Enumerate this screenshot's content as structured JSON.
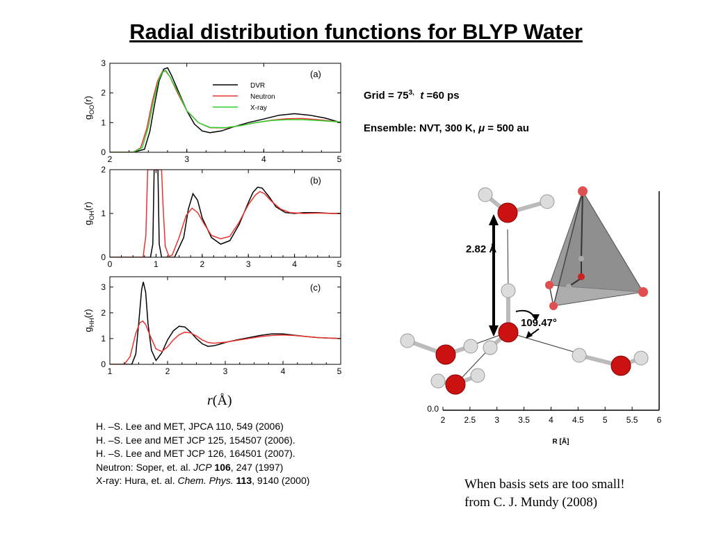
{
  "title": "Radial distribution functions for BLYP Water",
  "info": {
    "grid_prefix": "Grid = 75",
    "grid_exp": "3,",
    "t_symbol": "t",
    "t_value": " =60 ps",
    "ensemble_prefix": "Ensemble:  NVT, 300 K, ",
    "mu_symbol": "μ",
    "mu_value": " = 500 au"
  },
  "rlabel_r": "r",
  "rlabel_unit": "(Å)",
  "references": {
    "r1": "H. –S. Lee and MET, JPCA 110, 549 (2006)",
    "r2": "H. –S. Lee and MET JCP 125, 154507 (2006).",
    "r3": "H. –S. Lee and MET JCP 126, 164501 (2007).",
    "r4_a": "Neutron:  Soper, et. al. ",
    "r4_b": "JCP",
    "r4_c": " 106",
    "r4_d": ", 247 (1997)",
    "r5_a": "X-ray: Hura, et. al. ",
    "r5_b": "Chem. Phys.",
    "r5_c": " 113",
    "r5_d": ", 9140 (2000)"
  },
  "caption": {
    "line1": "When basis sets are too small!",
    "line2": "from C. J. Mundy (2008)"
  },
  "molecule": {
    "distance_label": "2.82 Å",
    "angle_label": "109.47°"
  },
  "colors": {
    "dvr": "#000000",
    "neutron": "#e8322d",
    "xray": "#30d030",
    "oxygen": "#cc1111",
    "hydrogen": "#dddddd"
  },
  "chart_data": [
    {
      "type": "line",
      "panel_label": "(a)",
      "ylabel": "gOO(r)",
      "xlim": [
        2,
        5
      ],
      "ylim": [
        0,
        3
      ],
      "xticks": [
        2,
        3,
        4,
        5
      ],
      "yticks": [
        0,
        1,
        2,
        3
      ],
      "legend": [
        "DVR",
        "Neutron",
        "X-ray"
      ],
      "series": [
        {
          "name": "DVR",
          "color": "#000000",
          "x": [
            2.0,
            2.3,
            2.45,
            2.52,
            2.58,
            2.64,
            2.7,
            2.75,
            2.8,
            2.9,
            3.0,
            3.1,
            3.2,
            3.3,
            3.45,
            3.6,
            3.8,
            4.0,
            4.2,
            4.4,
            4.6,
            4.8,
            5.0
          ],
          "y": [
            0,
            0,
            0.1,
            0.7,
            1.6,
            2.4,
            2.8,
            2.85,
            2.6,
            2.0,
            1.4,
            0.95,
            0.72,
            0.66,
            0.72,
            0.85,
            1.0,
            1.12,
            1.25,
            1.3,
            1.25,
            1.15,
            1.0
          ]
        },
        {
          "name": "Neutron",
          "color": "#e8322d",
          "x": [
            2.0,
            2.3,
            2.4,
            2.48,
            2.55,
            2.62,
            2.68,
            2.72,
            2.78,
            2.88,
            3.0,
            3.15,
            3.3,
            3.5,
            3.7,
            3.9,
            4.1,
            4.3,
            4.5,
            4.7,
            5.0
          ],
          "y": [
            0,
            0,
            0.15,
            0.8,
            1.7,
            2.4,
            2.72,
            2.75,
            2.55,
            2.0,
            1.4,
            1.0,
            0.83,
            0.82,
            0.9,
            1.0,
            1.08,
            1.13,
            1.14,
            1.1,
            1.02
          ]
        },
        {
          "name": "X-ray",
          "color": "#30d030",
          "x": [
            2.0,
            2.3,
            2.42,
            2.5,
            2.57,
            2.63,
            2.68,
            2.73,
            2.78,
            2.9,
            3.0,
            3.15,
            3.3,
            3.5,
            3.7,
            3.9,
            4.1,
            4.3,
            4.5,
            4.7,
            5.0
          ],
          "y": [
            0,
            0,
            0.15,
            0.85,
            1.75,
            2.4,
            2.7,
            2.75,
            2.55,
            1.95,
            1.4,
            1.0,
            0.84,
            0.83,
            0.9,
            1.0,
            1.07,
            1.1,
            1.1,
            1.07,
            1.02
          ]
        }
      ]
    },
    {
      "type": "line",
      "panel_label": "(b)",
      "ylabel": "gOH(r)",
      "xlim": [
        0,
        5
      ],
      "ylim": [
        0,
        2
      ],
      "xticks": [
        0,
        1,
        2,
        3,
        4,
        5
      ],
      "yticks": [
        0,
        1,
        2
      ],
      "series": [
        {
          "name": "DVR",
          "color": "#000000",
          "x": [
            0,
            0.88,
            0.93,
            0.96,
            0.98,
            1.02,
            1.04,
            1.07,
            1.12,
            1.4,
            1.6,
            1.7,
            1.8,
            1.9,
            2.0,
            2.2,
            2.4,
            2.6,
            2.8,
            3.0,
            3.1,
            3.2,
            3.3,
            3.45,
            3.6,
            3.8,
            4.0,
            4.2,
            4.5,
            4.8,
            5.0
          ],
          "y": [
            0,
            0,
            0.3,
            2,
            2,
            2,
            2,
            0.3,
            0,
            0,
            0.45,
            1.1,
            1.45,
            1.3,
            0.9,
            0.45,
            0.3,
            0.38,
            0.75,
            1.25,
            1.48,
            1.6,
            1.58,
            1.38,
            1.15,
            1.02,
            1.0,
            1.02,
            1.02,
            1.0,
            1.0
          ]
        },
        {
          "name": "Neutron",
          "color": "#e8322d",
          "x": [
            0,
            0.72,
            0.78,
            0.82,
            1.12,
            1.15,
            1.2,
            1.28,
            1.35,
            1.5,
            1.65,
            1.78,
            1.9,
            2.05,
            2.2,
            2.4,
            2.6,
            2.8,
            3.0,
            3.15,
            3.25,
            3.35,
            3.5,
            3.7,
            3.9,
            4.2,
            4.5,
            4.8,
            5.0
          ],
          "y": [
            0,
            0,
            0.5,
            2,
            2,
            1.2,
            0.25,
            0.02,
            0.05,
            0.45,
            0.95,
            1.12,
            1.02,
            0.75,
            0.5,
            0.42,
            0.48,
            0.8,
            1.2,
            1.42,
            1.5,
            1.45,
            1.28,
            1.1,
            1.02,
            1.0,
            1.01,
            1.0,
            1.0
          ]
        }
      ]
    },
    {
      "type": "line",
      "panel_label": "(c)",
      "ylabel": "gHH(r)",
      "xlim": [
        1,
        5
      ],
      "ylim": [
        0,
        3.4
      ],
      "xticks": [
        1,
        2,
        3,
        4,
        5
      ],
      "yticks": [
        0,
        1,
        2,
        3
      ],
      "series": [
        {
          "name": "DVR",
          "color": "#000000",
          "x": [
            1.0,
            1.38,
            1.45,
            1.5,
            1.55,
            1.58,
            1.62,
            1.66,
            1.72,
            1.8,
            1.9,
            2.0,
            2.1,
            2.2,
            2.3,
            2.4,
            2.5,
            2.6,
            2.7,
            2.8,
            2.9,
            3.0,
            3.2,
            3.4,
            3.6,
            3.8,
            4.0,
            4.2,
            4.4,
            4.6,
            4.8,
            5.0
          ],
          "y": [
            0,
            0,
            0.4,
            1.6,
            2.9,
            3.2,
            2.8,
            1.6,
            0.55,
            0.15,
            0.45,
            0.95,
            1.3,
            1.48,
            1.45,
            1.25,
            1.0,
            0.8,
            0.7,
            0.72,
            0.78,
            0.85,
            0.95,
            1.03,
            1.12,
            1.18,
            1.18,
            1.13,
            1.08,
            1.04,
            1.02,
            1.0
          ]
        },
        {
          "name": "Neutron",
          "color": "#e8322d",
          "x": [
            1.0,
            1.25,
            1.35,
            1.45,
            1.52,
            1.57,
            1.62,
            1.7,
            1.8,
            1.9,
            2.0,
            2.1,
            2.2,
            2.3,
            2.4,
            2.5,
            2.6,
            2.7,
            2.8,
            3.0,
            3.2,
            3.4,
            3.6,
            3.8,
            4.0,
            4.2,
            4.4,
            4.6,
            4.8,
            5.0
          ],
          "y": [
            0,
            0,
            0.3,
            1.2,
            1.62,
            1.68,
            1.55,
            1.1,
            0.6,
            0.5,
            0.68,
            0.95,
            1.15,
            1.25,
            1.22,
            1.1,
            0.95,
            0.85,
            0.82,
            0.86,
            0.93,
            1.0,
            1.07,
            1.12,
            1.14,
            1.12,
            1.08,
            1.04,
            1.02,
            1.0
          ]
        }
      ]
    },
    {
      "type": "line",
      "panel_label": "",
      "xlabel": "R [Å]",
      "xlim": [
        2,
        6
      ],
      "xticks": [
        2,
        2.5,
        3,
        3.5,
        4,
        4.5,
        5,
        5.5,
        6
      ],
      "ytick_label": "0.0",
      "series": []
    }
  ]
}
